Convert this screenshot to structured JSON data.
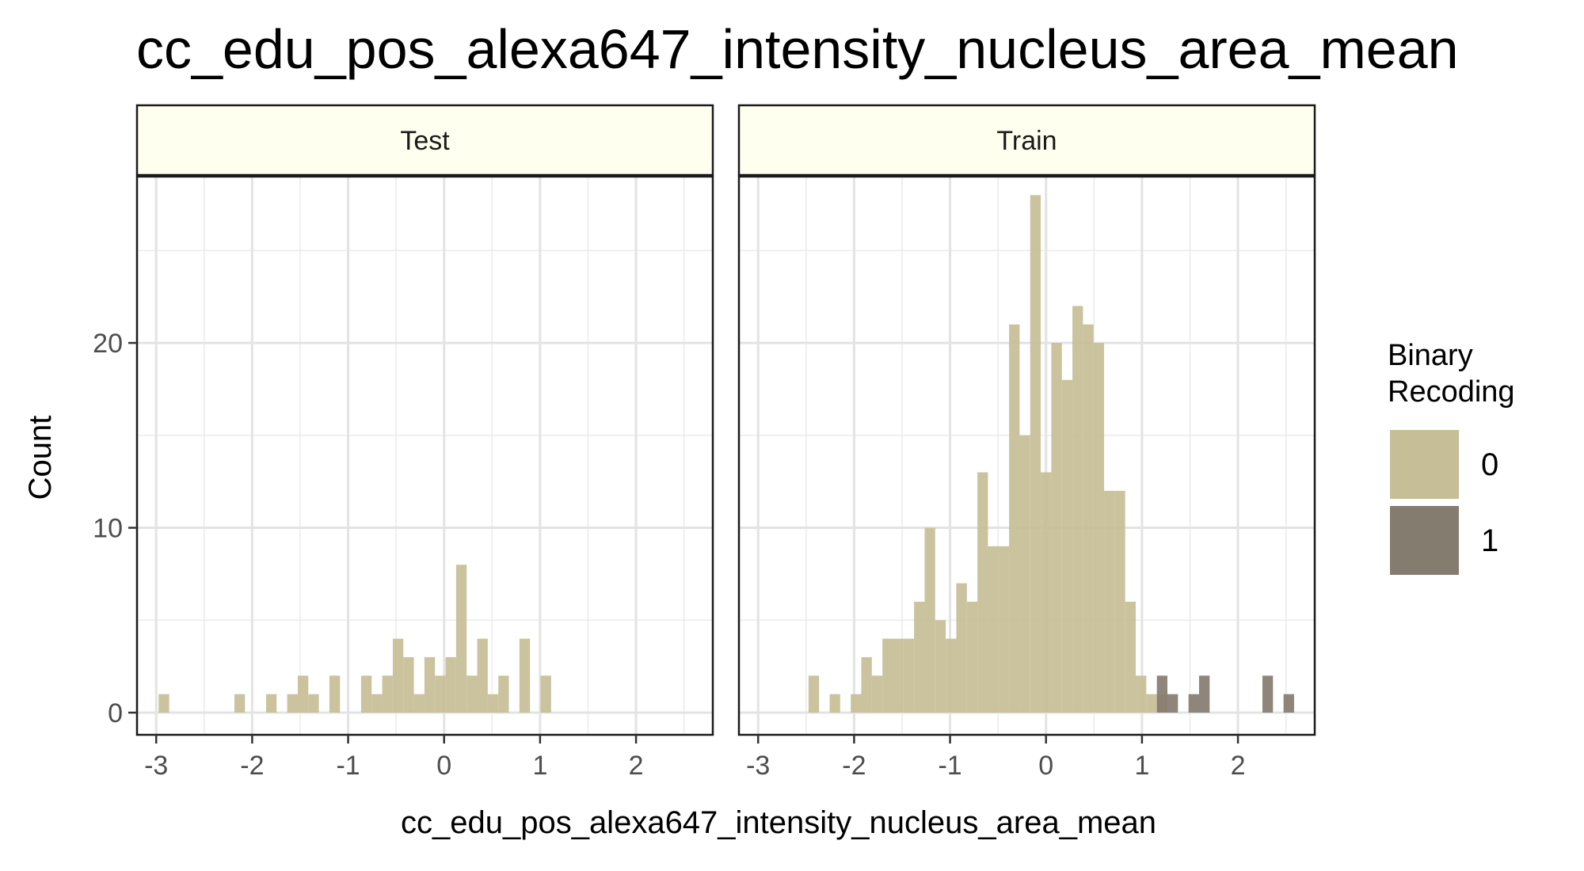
{
  "chart_data": {
    "type": "histogram",
    "title": "cc_edu_pos_alexa647_intensity_nucleus_area_mean",
    "xlabel": "cc_edu_pos_alexa647_intensity_nucleus_area_mean",
    "ylabel": "Count",
    "xlim": [
      -3.2,
      2.8
    ],
    "ylim": [
      -1.2,
      29
    ],
    "x_ticks": [
      -3,
      -2,
      -1,
      0,
      1,
      2
    ],
    "x_tick_labels": [
      "-3",
      "-2",
      "-1",
      "0",
      "1",
      "2"
    ],
    "y_ticks": [
      0,
      10,
      20
    ],
    "y_tick_labels": [
      "0",
      "10",
      "20"
    ],
    "grid": true,
    "bin_width": 0.11,
    "legend": {
      "title_lines": [
        "Binary",
        "Recoding"
      ],
      "position": "right",
      "entries": [
        {
          "label": "0",
          "color": "#c6be96"
        },
        {
          "label": "1",
          "color": "#857c70"
        }
      ]
    },
    "facets": [
      {
        "label": "Test",
        "series": [
          {
            "name": "0",
            "color": "#c6be96",
            "bins": [
              [
                -2.92,
                1
              ],
              [
                -2.13,
                1
              ],
              [
                -1.8,
                1
              ],
              [
                -1.58,
                1
              ],
              [
                -1.47,
                2
              ],
              [
                -1.36,
                1
              ],
              [
                -1.14,
                2
              ],
              [
                -0.81,
                2
              ],
              [
                -0.7,
                1
              ],
              [
                -0.59,
                2
              ],
              [
                -0.48,
                4
              ],
              [
                -0.37,
                3
              ],
              [
                -0.26,
                1
              ],
              [
                -0.15,
                3
              ],
              [
                -0.04,
                2
              ],
              [
                0.07,
                3
              ],
              [
                0.18,
                8
              ],
              [
                0.29,
                2
              ],
              [
                0.4,
                4
              ],
              [
                0.51,
                1
              ],
              [
                0.62,
                2
              ],
              [
                0.84,
                4
              ],
              [
                1.06,
                2
              ]
            ]
          }
        ]
      },
      {
        "label": "Train",
        "series": [
          {
            "name": "0",
            "color": "#c6be96",
            "bins": [
              [
                -2.42,
                2
              ],
              [
                -2.2,
                1
              ],
              [
                -1.98,
                1
              ],
              [
                -1.87,
                3
              ],
              [
                -1.76,
                2
              ],
              [
                -1.65,
                4
              ],
              [
                -1.54,
                4
              ],
              [
                -1.43,
                4
              ],
              [
                -1.32,
                6
              ],
              [
                -1.21,
                10
              ],
              [
                -1.1,
                5
              ],
              [
                -0.99,
                4
              ],
              [
                -0.88,
                7
              ],
              [
                -0.77,
                6
              ],
              [
                -0.66,
                13
              ],
              [
                -0.55,
                9
              ],
              [
                -0.44,
                9
              ],
              [
                -0.33,
                21
              ],
              [
                -0.22,
                15
              ],
              [
                -0.11,
                28
              ],
              [
                0.0,
                13
              ],
              [
                0.11,
                20
              ],
              [
                0.22,
                18
              ],
              [
                0.33,
                22
              ],
              [
                0.44,
                21
              ],
              [
                0.55,
                20
              ],
              [
                0.66,
                12
              ],
              [
                0.77,
                12
              ],
              [
                0.88,
                6
              ],
              [
                0.99,
                2
              ],
              [
                1.1,
                1
              ],
              [
                1.21,
                1
              ]
            ]
          },
          {
            "name": "1",
            "color": "#857c70",
            "bins": [
              [
                1.21,
                2
              ],
              [
                1.32,
                1
              ],
              [
                1.54,
                1
              ],
              [
                1.65,
                2
              ],
              [
                2.31,
                2
              ],
              [
                2.53,
                1
              ]
            ]
          }
        ]
      }
    ]
  }
}
